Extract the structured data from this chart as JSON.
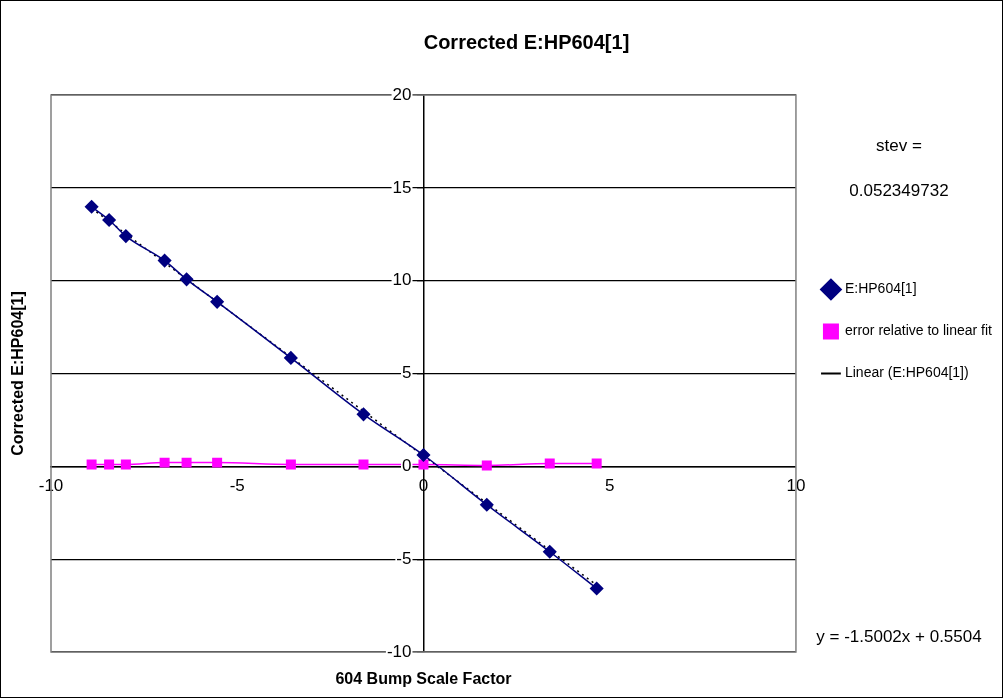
{
  "chart_data": {
    "type": "line",
    "title": "Corrected E:HP604[1]",
    "xlabel": "604 Bump Scale Factor",
    "ylabel": "Corrected E:HP604[1]",
    "xlim": [
      -10,
      10
    ],
    "xticks": [
      -10,
      -5,
      0,
      5,
      10
    ],
    "ylim": [
      -10,
      20
    ],
    "yticks": [
      -10,
      -5,
      0,
      5,
      10,
      15,
      20
    ],
    "grid": "y",
    "legend": "right",
    "annotations": [
      "stev =",
      "0.052349732",
      "y = -1.5002x + 0.5504"
    ],
    "series": [
      {
        "name": "E:HP604[1]",
        "color": "#000080",
        "marker": "diamond",
        "line_style": "solid",
        "x": [
          -8.91,
          -8.44,
          -7.99,
          -6.95,
          -6.36,
          -5.54,
          -3.56,
          -1.61,
          0,
          1.7,
          3.39,
          4.65
        ],
        "values": [
          13.98,
          13.27,
          12.4,
          11.08,
          10.07,
          8.86,
          5.84,
          2.8,
          0.61,
          -2.07,
          -4.6,
          -6.58
        ]
      },
      {
        "name": "error relative to linear fit",
        "color": "#ff00ff",
        "marker": "square",
        "line_style": "solid",
        "x": [
          -8.91,
          -8.44,
          -7.99,
          -6.95,
          -6.36,
          -5.54,
          -3.56,
          -1.61,
          0,
          1.7,
          3.39,
          4.65
        ],
        "values": [
          0.1,
          0.1,
          0.1,
          0.2,
          0.2,
          0.2,
          0.1,
          0.1,
          0.1,
          0.05,
          0.15,
          0.15
        ]
      },
      {
        "name": "Linear (E:HP604[1])",
        "color": "#000000",
        "marker": "none",
        "line_style": "dotted",
        "x": [
          -8.91,
          4.65
        ],
        "values": [
          13.9,
          -6.4
        ]
      }
    ]
  }
}
